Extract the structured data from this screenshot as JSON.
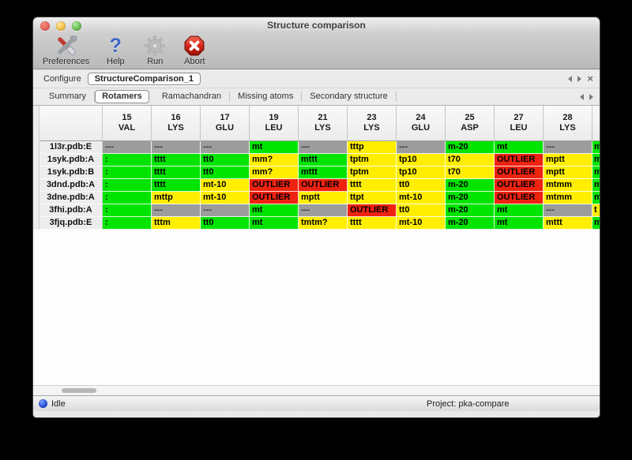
{
  "window": {
    "title": "Structure comparison"
  },
  "toolbar": {
    "items": [
      {
        "label": "Preferences",
        "icon": "tools-icon"
      },
      {
        "label": "Help",
        "icon": "question-icon"
      },
      {
        "label": "Run",
        "icon": "gear-icon"
      },
      {
        "label": "Abort",
        "icon": "abort-icon"
      }
    ]
  },
  "configure": {
    "label": "Configure",
    "selected_config": "StructureComparison_1"
  },
  "tabs": {
    "items": [
      "Summary",
      "Rotamers",
      "Ramachandran",
      "Missing atoms",
      "Secondary structure"
    ],
    "selected": "Rotamers"
  },
  "table": {
    "columns": [
      {
        "num": "15",
        "res": "VAL"
      },
      {
        "num": "16",
        "res": "LYS"
      },
      {
        "num": "17",
        "res": "GLU"
      },
      {
        "num": "19",
        "res": "LEU"
      },
      {
        "num": "21",
        "res": "LYS"
      },
      {
        "num": "23",
        "res": "LYS"
      },
      {
        "num": "24",
        "res": "GLU"
      },
      {
        "num": "25",
        "res": "ASP"
      },
      {
        "num": "27",
        "res": "LEU"
      },
      {
        "num": "28",
        "res": "LYS"
      }
    ],
    "rows": [
      {
        "label": "1l3r.pdb:E",
        "cells": [
          {
            "t": "---",
            "c": "gray"
          },
          {
            "t": "---",
            "c": "gray"
          },
          {
            "t": "---",
            "c": "gray"
          },
          {
            "t": "mt",
            "c": "green"
          },
          {
            "t": "---",
            "c": "gray"
          },
          {
            "t": "tttp",
            "c": "yellow"
          },
          {
            "t": "---",
            "c": "gray"
          },
          {
            "t": "m-20",
            "c": "green"
          },
          {
            "t": "mt",
            "c": "green"
          },
          {
            "t": "---",
            "c": "gray"
          }
        ],
        "overflow_cell": {
          "t": "m",
          "c": "green"
        }
      },
      {
        "label": "1syk.pdb:A",
        "cells": [
          {
            "t": ":",
            "c": "green"
          },
          {
            "t": "tttt",
            "c": "green"
          },
          {
            "t": "tt0",
            "c": "green"
          },
          {
            "t": "mm?",
            "c": "yellow"
          },
          {
            "t": "mttt",
            "c": "green"
          },
          {
            "t": "tptm",
            "c": "yellow"
          },
          {
            "t": "tp10",
            "c": "yellow"
          },
          {
            "t": "t70",
            "c": "yellow"
          },
          {
            "t": "OUTLIER",
            "c": "red"
          },
          {
            "t": "mptt",
            "c": "yellow"
          }
        ],
        "overflow_cell": {
          "t": "m",
          "c": "green"
        }
      },
      {
        "label": "1syk.pdb:B",
        "cells": [
          {
            "t": ":",
            "c": "green"
          },
          {
            "t": "tttt",
            "c": "green"
          },
          {
            "t": "tt0",
            "c": "green"
          },
          {
            "t": "mm?",
            "c": "yellow"
          },
          {
            "t": "mttt",
            "c": "green"
          },
          {
            "t": "tptm",
            "c": "yellow"
          },
          {
            "t": "tp10",
            "c": "yellow"
          },
          {
            "t": "t70",
            "c": "yellow"
          },
          {
            "t": "OUTLIER",
            "c": "red"
          },
          {
            "t": "mptt",
            "c": "yellow"
          }
        ],
        "overflow_cell": {
          "t": "m",
          "c": "green"
        }
      },
      {
        "label": "3dnd.pdb:A",
        "cells": [
          {
            "t": ":",
            "c": "green"
          },
          {
            "t": "tttt",
            "c": "green"
          },
          {
            "t": "mt-10",
            "c": "yellow"
          },
          {
            "t": "OUTLIER",
            "c": "red"
          },
          {
            "t": "OUTLIER",
            "c": "red"
          },
          {
            "t": "tttt",
            "c": "yellow"
          },
          {
            "t": "tt0",
            "c": "yellow"
          },
          {
            "t": "m-20",
            "c": "green"
          },
          {
            "t": "OUTLIER",
            "c": "red"
          },
          {
            "t": "mtmm",
            "c": "yellow"
          }
        ],
        "overflow_cell": {
          "t": "m",
          "c": "green"
        }
      },
      {
        "label": "3dne.pdb:A",
        "cells": [
          {
            "t": ":",
            "c": "green"
          },
          {
            "t": "mttp",
            "c": "yellow"
          },
          {
            "t": "mt-10",
            "c": "yellow"
          },
          {
            "t": "OUTLIER",
            "c": "red"
          },
          {
            "t": "mptt",
            "c": "yellow"
          },
          {
            "t": "ttpt",
            "c": "yellow"
          },
          {
            "t": "mt-10",
            "c": "yellow"
          },
          {
            "t": "m-20",
            "c": "green"
          },
          {
            "t": "OUTLIER",
            "c": "red"
          },
          {
            "t": "mtmm",
            "c": "yellow"
          }
        ],
        "overflow_cell": {
          "t": "m",
          "c": "green"
        }
      },
      {
        "label": "3fhi.pdb:A",
        "cells": [
          {
            "t": ":",
            "c": "green"
          },
          {
            "t": "---",
            "c": "gray"
          },
          {
            "t": "---",
            "c": "gray"
          },
          {
            "t": "mt",
            "c": "green"
          },
          {
            "t": "---",
            "c": "gray"
          },
          {
            "t": "OUTLIER",
            "c": "red"
          },
          {
            "t": "tt0",
            "c": "yellow"
          },
          {
            "t": "m-20",
            "c": "green"
          },
          {
            "t": "mt",
            "c": "green"
          },
          {
            "t": "---",
            "c": "gray"
          }
        ],
        "overflow_cell": {
          "t": "t",
          "c": "yellow"
        }
      },
      {
        "label": "3fjq.pdb:E",
        "cells": [
          {
            "t": ":",
            "c": "green"
          },
          {
            "t": "tttm",
            "c": "yellow"
          },
          {
            "t": "tt0",
            "c": "green"
          },
          {
            "t": "mt",
            "c": "green"
          },
          {
            "t": "tmtm?",
            "c": "yellow"
          },
          {
            "t": "tttt",
            "c": "yellow"
          },
          {
            "t": "mt-10",
            "c": "yellow"
          },
          {
            "t": "m-20",
            "c": "green"
          },
          {
            "t": "mt",
            "c": "green"
          },
          {
            "t": "mttt",
            "c": "yellow"
          }
        ],
        "overflow_cell": {
          "t": "m",
          "c": "green"
        }
      }
    ],
    "cell_colors": {
      "green": "#00e400",
      "yellow": "#ffee00",
      "red": "#ee2211",
      "gray": "#9c9c9c"
    }
  },
  "status": {
    "state": "Idle",
    "project": "Project: pka-compare"
  }
}
